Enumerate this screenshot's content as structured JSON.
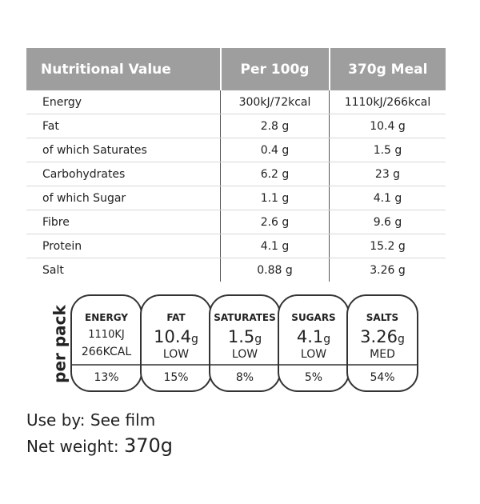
{
  "table": {
    "header": [
      "Nutritional Value",
      "Per 100g",
      "370g Meal"
    ],
    "rows": [
      [
        "Energy",
        "300kJ/72kcal",
        "1110kJ/266kcal"
      ],
      [
        "Fat",
        "2.8 g",
        "10.4 g"
      ],
      [
        "of which Saturates",
        "0.4 g",
        "1.5 g"
      ],
      [
        "Carbohydrates",
        "6.2 g",
        "23 g"
      ],
      [
        "of which Sugar",
        "1.1 g",
        "4.1 g"
      ],
      [
        "Fibre",
        "2.6 g",
        "9.6 g"
      ],
      [
        "Protein",
        "4.1 g",
        "15.2 g"
      ],
      [
        "Salt",
        "0.88 g",
        "3.26 g"
      ]
    ]
  },
  "per_pack": {
    "label": "per pack",
    "badges": [
      {
        "name": "ENERGY",
        "lines": [
          "1110KJ",
          "266KCAL"
        ],
        "percent": "13%"
      },
      {
        "name": "FAT",
        "amount": "10.4",
        "unit": "g",
        "level": "LOW",
        "percent": "15%"
      },
      {
        "name": "SATURATES",
        "amount": "1.5",
        "unit": "g",
        "level": "LOW",
        "percent": "8%"
      },
      {
        "name": "SUGARS",
        "amount": "4.1",
        "unit": "g",
        "level": "LOW",
        "percent": "5%"
      },
      {
        "name": "SALTS",
        "amount": "3.26",
        "unit": "g",
        "level": "MED",
        "percent": "54%"
      }
    ]
  },
  "footer": {
    "use_by": "Use by: See film",
    "net_weight_label": "Net weight:",
    "net_weight_value": "370g"
  }
}
